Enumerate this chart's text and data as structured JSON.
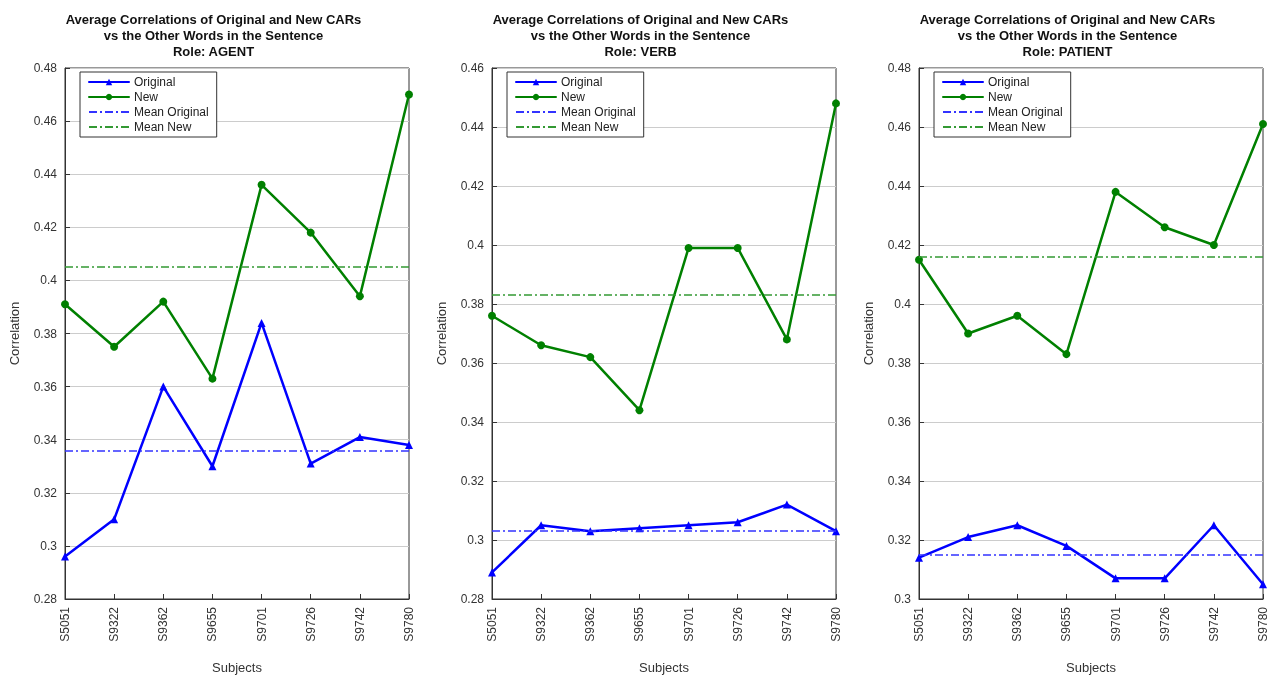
{
  "chart_data": [
    {
      "type": "line",
      "title": "Average Correlations of Original and New CARs\nvs the Other Words in the Sentence\nRole: AGENT",
      "xlabel": "Subjects",
      "ylabel": "Correlation",
      "categories": [
        "S5051",
        "S9322",
        "S9362",
        "S9655",
        "S9701",
        "S9726",
        "S9742",
        "S9780"
      ],
      "series": [
        {
          "name": "Original",
          "color": "#0000ff",
          "marker": "triangle",
          "values": [
            0.296,
            0.31,
            0.36,
            0.33,
            0.384,
            0.331,
            0.341,
            0.338
          ]
        },
        {
          "name": "New",
          "color": "#008000",
          "marker": "circle",
          "values": [
            0.391,
            0.375,
            0.392,
            0.363,
            0.436,
            0.418,
            0.394,
            0.47
          ]
        }
      ],
      "ref_lines": [
        {
          "axis": "y",
          "value": 0.336,
          "label": "Mean Original",
          "color": "#3333ff",
          "line_style": "dashed"
        },
        {
          "axis": "y",
          "value": 0.405,
          "label": "Mean New",
          "color": "#339933",
          "line_style": "dashed"
        }
      ],
      "ylim": [
        0.28,
        0.48
      ],
      "yticks": [
        0.28,
        0.3,
        0.32,
        0.34,
        0.36,
        0.38,
        0.4,
        0.42,
        0.44,
        0.46,
        0.48
      ],
      "grid": "y",
      "legend": "top left",
      "line_style": "solid"
    },
    {
      "type": "line",
      "title": "Average Correlations of Original and New CARs\nvs the Other Words in the Sentence\nRole: VERB",
      "xlabel": "Subjects",
      "ylabel": "Correlation",
      "categories": [
        "S5051",
        "S9322",
        "S9362",
        "S9655",
        "S9701",
        "S9726",
        "S9742",
        "S9780"
      ],
      "series": [
        {
          "name": "Original",
          "color": "#0000ff",
          "marker": "triangle",
          "values": [
            0.289,
            0.305,
            0.303,
            0.304,
            0.305,
            0.306,
            0.312,
            0.303
          ]
        },
        {
          "name": "New",
          "color": "#008000",
          "marker": "circle",
          "values": [
            0.376,
            0.366,
            0.362,
            0.344,
            0.399,
            0.399,
            0.368,
            0.448
          ]
        }
      ],
      "ref_lines": [
        {
          "axis": "y",
          "value": 0.303,
          "label": "Mean Original",
          "color": "#3333ff",
          "line_style": "dashed"
        },
        {
          "axis": "y",
          "value": 0.383,
          "label": "Mean New",
          "color": "#339933",
          "line_style": "dashed"
        }
      ],
      "ylim": [
        0.28,
        0.46
      ],
      "yticks": [
        0.28,
        0.3,
        0.32,
        0.34,
        0.36,
        0.38,
        0.4,
        0.42,
        0.44,
        0.46
      ],
      "grid": "y",
      "legend": "top left",
      "line_style": "solid"
    },
    {
      "type": "line",
      "title": "Average Correlations of Original and New CARs\nvs the Other Words in the Sentence\nRole: PATIENT",
      "xlabel": "Subjects",
      "ylabel": "Correlation",
      "categories": [
        "S5051",
        "S9322",
        "S9362",
        "S9655",
        "S9701",
        "S9726",
        "S9742",
        "S9780"
      ],
      "series": [
        {
          "name": "Original",
          "color": "#0000ff",
          "marker": "triangle",
          "values": [
            0.314,
            0.321,
            0.325,
            0.318,
            0.307,
            0.307,
            0.325,
            0.305
          ]
        },
        {
          "name": "New",
          "color": "#008000",
          "marker": "circle",
          "values": [
            0.415,
            0.39,
            0.396,
            0.383,
            0.438,
            0.426,
            0.42,
            0.461
          ]
        }
      ],
      "ref_lines": [
        {
          "axis": "y",
          "value": 0.315,
          "label": "Mean Original",
          "color": "#3333ff",
          "line_style": "dashed"
        },
        {
          "axis": "y",
          "value": 0.416,
          "label": "Mean New",
          "color": "#339933",
          "line_style": "dashed"
        }
      ],
      "ylim": [
        0.3,
        0.48
      ],
      "yticks": [
        0.3,
        0.32,
        0.34,
        0.36,
        0.38,
        0.4,
        0.42,
        0.44,
        0.46,
        0.48
      ],
      "grid": "y",
      "legend": "top left",
      "line_style": "solid"
    }
  ]
}
